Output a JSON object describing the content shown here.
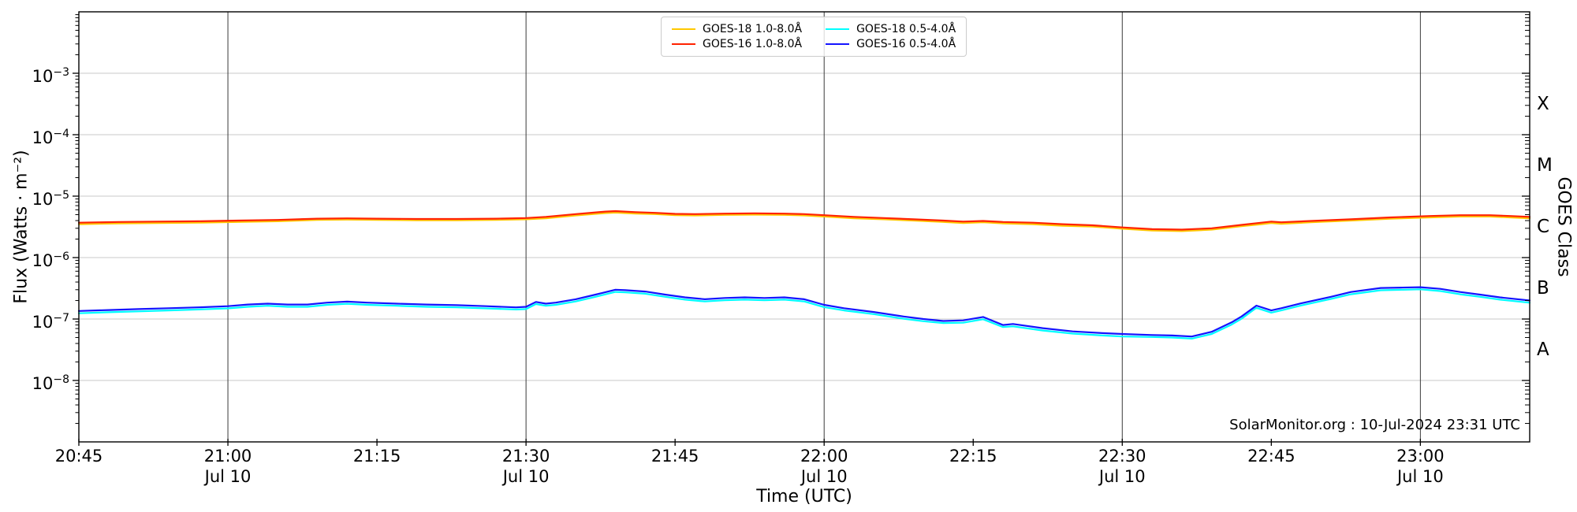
{
  "watermark": "SolarMonitor.org : 10-Jul-2024 23:31 UTC",
  "chart_data": {
    "type": "line",
    "title": "",
    "xlabel": "Time (UTC)",
    "ylabel": "Flux (Watts · m⁻²)",
    "right_axis_label": "GOES Class",
    "x_axis": {
      "total_minutes": 146,
      "start_label": "20:45",
      "end_time": "23:11",
      "gridline_minutes": [
        15,
        45,
        75,
        105,
        135
      ],
      "ticks": [
        {
          "minute": 0,
          "label": "20:45",
          "sublabel": ""
        },
        {
          "minute": 15,
          "label": "21:00",
          "sublabel": "Jul 10"
        },
        {
          "minute": 30,
          "label": "21:15",
          "sublabel": ""
        },
        {
          "minute": 45,
          "label": "21:30",
          "sublabel": "Jul 10"
        },
        {
          "minute": 60,
          "label": "21:45",
          "sublabel": ""
        },
        {
          "minute": 75,
          "label": "22:00",
          "sublabel": "Jul 10"
        },
        {
          "minute": 90,
          "label": "22:15",
          "sublabel": ""
        },
        {
          "minute": 105,
          "label": "22:30",
          "sublabel": "Jul 10"
        },
        {
          "minute": 120,
          "label": "22:45",
          "sublabel": ""
        },
        {
          "minute": 135,
          "label": "23:00",
          "sublabel": "Jul 10"
        }
      ]
    },
    "y_axis": {
      "scale": "log",
      "log_min_exp": -9,
      "log_max_exp": -2,
      "tick_exponents": [
        -3,
        -4,
        -5,
        -6,
        -7,
        -8
      ],
      "grid": true
    },
    "goes_classes": [
      {
        "label": "X",
        "log_center": -3.5
      },
      {
        "label": "M",
        "log_center": -4.5
      },
      {
        "label": "C",
        "log_center": -5.5
      },
      {
        "label": "B",
        "log_center": -6.5
      },
      {
        "label": "A",
        "log_center": -7.5
      }
    ],
    "legend_position": "top-center",
    "series": [
      {
        "name": "GOES-18 1.0-8.0Å",
        "color": "#ffc800",
        "points": [
          [
            0,
            3.5e-06
          ],
          [
            4,
            3.6e-06
          ],
          [
            8,
            3.65e-06
          ],
          [
            12,
            3.7e-06
          ],
          [
            16,
            3.8e-06
          ],
          [
            20,
            3.9e-06
          ],
          [
            24,
            4.1e-06
          ],
          [
            27,
            4.15e-06
          ],
          [
            30,
            4.1e-06
          ],
          [
            34,
            4.05e-06
          ],
          [
            38,
            4.05e-06
          ],
          [
            42,
            4.1e-06
          ],
          [
            45,
            4.2e-06
          ],
          [
            47,
            4.35e-06
          ],
          [
            50,
            4.85e-06
          ],
          [
            53,
            5.3e-06
          ],
          [
            54,
            5.4e-06
          ],
          [
            56,
            5.2e-06
          ],
          [
            58,
            5.1e-06
          ],
          [
            60,
            4.9e-06
          ],
          [
            62,
            4.85e-06
          ],
          [
            65,
            4.95e-06
          ],
          [
            68,
            5e-06
          ],
          [
            71,
            4.95e-06
          ],
          [
            73,
            4.85e-06
          ],
          [
            75,
            4.65e-06
          ],
          [
            78,
            4.35e-06
          ],
          [
            81,
            4.2e-06
          ],
          [
            84,
            4e-06
          ],
          [
            87,
            3.8e-06
          ],
          [
            89,
            3.65e-06
          ],
          [
            91,
            3.75e-06
          ],
          [
            93,
            3.6e-06
          ],
          [
            96,
            3.5e-06
          ],
          [
            99,
            3.3e-06
          ],
          [
            102,
            3.2e-06
          ],
          [
            105,
            2.95e-06
          ],
          [
            108,
            2.75e-06
          ],
          [
            111,
            2.7e-06
          ],
          [
            114,
            2.85e-06
          ],
          [
            117,
            3.25e-06
          ],
          [
            119,
            3.5e-06
          ],
          [
            120,
            3.65e-06
          ],
          [
            121,
            3.55e-06
          ],
          [
            124,
            3.75e-06
          ],
          [
            128,
            4e-06
          ],
          [
            132,
            4.3e-06
          ],
          [
            136,
            4.5e-06
          ],
          [
            139,
            4.65e-06
          ],
          [
            142,
            4.65e-06
          ],
          [
            144,
            4.5e-06
          ],
          [
            146,
            4.35e-06
          ]
        ]
      },
      {
        "name": "GOES-16 1.0-8.0Å",
        "color": "#ff2200",
        "points": [
          [
            0,
            3.7e-06
          ],
          [
            4,
            3.8e-06
          ],
          [
            8,
            3.85e-06
          ],
          [
            12,
            3.9e-06
          ],
          [
            16,
            4e-06
          ],
          [
            20,
            4.1e-06
          ],
          [
            24,
            4.3e-06
          ],
          [
            27,
            4.35e-06
          ],
          [
            30,
            4.3e-06
          ],
          [
            34,
            4.25e-06
          ],
          [
            38,
            4.25e-06
          ],
          [
            42,
            4.3e-06
          ],
          [
            45,
            4.4e-06
          ],
          [
            47,
            4.6e-06
          ],
          [
            50,
            5.1e-06
          ],
          [
            53,
            5.6e-06
          ],
          [
            54,
            5.7e-06
          ],
          [
            56,
            5.5e-06
          ],
          [
            58,
            5.35e-06
          ],
          [
            60,
            5.15e-06
          ],
          [
            62,
            5.1e-06
          ],
          [
            65,
            5.2e-06
          ],
          [
            68,
            5.25e-06
          ],
          [
            71,
            5.2e-06
          ],
          [
            73,
            5.1e-06
          ],
          [
            75,
            4.9e-06
          ],
          [
            78,
            4.6e-06
          ],
          [
            81,
            4.4e-06
          ],
          [
            84,
            4.2e-06
          ],
          [
            87,
            4e-06
          ],
          [
            89,
            3.85e-06
          ],
          [
            91,
            3.95e-06
          ],
          [
            93,
            3.8e-06
          ],
          [
            96,
            3.7e-06
          ],
          [
            99,
            3.5e-06
          ],
          [
            102,
            3.35e-06
          ],
          [
            105,
            3.1e-06
          ],
          [
            108,
            2.9e-06
          ],
          [
            111,
            2.85e-06
          ],
          [
            114,
            3e-06
          ],
          [
            117,
            3.4e-06
          ],
          [
            119,
            3.7e-06
          ],
          [
            120,
            3.85e-06
          ],
          [
            121,
            3.75e-06
          ],
          [
            124,
            3.95e-06
          ],
          [
            128,
            4.2e-06
          ],
          [
            132,
            4.5e-06
          ],
          [
            136,
            4.75e-06
          ],
          [
            139,
            4.9e-06
          ],
          [
            142,
            4.9e-06
          ],
          [
            144,
            4.75e-06
          ],
          [
            146,
            4.6e-06
          ]
        ]
      },
      {
        "name": "GOES-18 0.5-4.0Å",
        "color": "#00ffff",
        "points": [
          [
            0,
            1.24e-07
          ],
          [
            3,
            1.29e-07
          ],
          [
            6,
            1.33e-07
          ],
          [
            9,
            1.38e-07
          ],
          [
            12,
            1.43e-07
          ],
          [
            15,
            1.49e-07
          ],
          [
            17,
            1.58e-07
          ],
          [
            19,
            1.64e-07
          ],
          [
            21,
            1.58e-07
          ],
          [
            23,
            1.58e-07
          ],
          [
            25,
            1.7e-07
          ],
          [
            27,
            1.77e-07
          ],
          [
            29,
            1.7e-07
          ],
          [
            32,
            1.64e-07
          ],
          [
            35,
            1.58e-07
          ],
          [
            38,
            1.55e-07
          ],
          [
            41,
            1.49e-07
          ],
          [
            44,
            1.43e-07
          ],
          [
            45,
            1.45e-07
          ],
          [
            46,
            1.75e-07
          ],
          [
            47,
            1.64e-07
          ],
          [
            48,
            1.7e-07
          ],
          [
            50,
            1.93e-07
          ],
          [
            52,
            2.3e-07
          ],
          [
            54,
            2.76e-07
          ],
          [
            55,
            2.71e-07
          ],
          [
            57,
            2.58e-07
          ],
          [
            59,
            2.3e-07
          ],
          [
            61,
            2.07e-07
          ],
          [
            63,
            1.93e-07
          ],
          [
            65,
            2.02e-07
          ],
          [
            67,
            2.07e-07
          ],
          [
            69,
            2.02e-07
          ],
          [
            71,
            2.07e-07
          ],
          [
            73,
            1.93e-07
          ],
          [
            75,
            1.56e-07
          ],
          [
            77,
            1.38e-07
          ],
          [
            80,
            1.2e-07
          ],
          [
            83,
            1.01e-07
          ],
          [
            85,
            9.2e-08
          ],
          [
            87,
            8.6e-08
          ],
          [
            89,
            8.7e-08
          ],
          [
            91,
            9.9e-08
          ],
          [
            93,
            7.4e-08
          ],
          [
            94,
            7.6e-08
          ],
          [
            97,
            6.5e-08
          ],
          [
            100,
            5.8e-08
          ],
          [
            103,
            5.4e-08
          ],
          [
            105,
            5.2e-08
          ],
          [
            108,
            5.1e-08
          ],
          [
            110,
            5e-08
          ],
          [
            112,
            4.8e-08
          ],
          [
            114,
            5.7e-08
          ],
          [
            116,
            8.1e-08
          ],
          [
            117,
            1.01e-07
          ],
          [
            118.5,
            1.52e-07
          ],
          [
            120,
            1.27e-07
          ],
          [
            121,
            1.38e-07
          ],
          [
            123,
            1.66e-07
          ],
          [
            126,
            2.12e-07
          ],
          [
            128,
            2.53e-07
          ],
          [
            131,
            2.94e-07
          ],
          [
            133,
            2.99e-07
          ],
          [
            135,
            3.04e-07
          ],
          [
            137,
            2.85e-07
          ],
          [
            139,
            2.53e-07
          ],
          [
            141,
            2.3e-07
          ],
          [
            143,
            2.07e-07
          ],
          [
            146,
            1.84e-07
          ]
        ]
      },
      {
        "name": "GOES-16 0.5-4.0Å",
        "color": "#1414ff",
        "points": [
          [
            0,
            1.35e-07
          ],
          [
            3,
            1.4e-07
          ],
          [
            6,
            1.45e-07
          ],
          [
            9,
            1.5e-07
          ],
          [
            12,
            1.55e-07
          ],
          [
            15,
            1.62e-07
          ],
          [
            17,
            1.72e-07
          ],
          [
            19,
            1.78e-07
          ],
          [
            21,
            1.72e-07
          ],
          [
            23,
            1.72e-07
          ],
          [
            25,
            1.85e-07
          ],
          [
            27,
            1.92e-07
          ],
          [
            29,
            1.85e-07
          ],
          [
            32,
            1.78e-07
          ],
          [
            35,
            1.72e-07
          ],
          [
            38,
            1.68e-07
          ],
          [
            41,
            1.62e-07
          ],
          [
            44,
            1.55e-07
          ],
          [
            45,
            1.58e-07
          ],
          [
            46,
            1.9e-07
          ],
          [
            47,
            1.78e-07
          ],
          [
            48,
            1.85e-07
          ],
          [
            50,
            2.1e-07
          ],
          [
            52,
            2.5e-07
          ],
          [
            54,
            3e-07
          ],
          [
            55,
            2.95e-07
          ],
          [
            57,
            2.8e-07
          ],
          [
            59,
            2.5e-07
          ],
          [
            61,
            2.25e-07
          ],
          [
            63,
            2.1e-07
          ],
          [
            65,
            2.2e-07
          ],
          [
            67,
            2.25e-07
          ],
          [
            69,
            2.2e-07
          ],
          [
            71,
            2.25e-07
          ],
          [
            73,
            2.1e-07
          ],
          [
            75,
            1.7e-07
          ],
          [
            77,
            1.5e-07
          ],
          [
            80,
            1.3e-07
          ],
          [
            83,
            1.1e-07
          ],
          [
            85,
            1e-07
          ],
          [
            87,
            9.3e-08
          ],
          [
            89,
            9.5e-08
          ],
          [
            91,
            1.08e-07
          ],
          [
            93,
            8e-08
          ],
          [
            94,
            8.3e-08
          ],
          [
            97,
            7.1e-08
          ],
          [
            100,
            6.3e-08
          ],
          [
            103,
            5.9e-08
          ],
          [
            105,
            5.7e-08
          ],
          [
            108,
            5.5e-08
          ],
          [
            110,
            5.4e-08
          ],
          [
            112,
            5.2e-08
          ],
          [
            114,
            6.2e-08
          ],
          [
            116,
            8.8e-08
          ],
          [
            117,
            1.1e-07
          ],
          [
            118.5,
            1.65e-07
          ],
          [
            120,
            1.38e-07
          ],
          [
            121,
            1.5e-07
          ],
          [
            123,
            1.8e-07
          ],
          [
            126,
            2.3e-07
          ],
          [
            128,
            2.75e-07
          ],
          [
            131,
            3.2e-07
          ],
          [
            133,
            3.25e-07
          ],
          [
            135,
            3.3e-07
          ],
          [
            137,
            3.1e-07
          ],
          [
            139,
            2.75e-07
          ],
          [
            141,
            2.5e-07
          ],
          [
            143,
            2.25e-07
          ],
          [
            146,
            2e-07
          ]
        ]
      }
    ],
    "style": {
      "background": "#ffffff",
      "h_grid_color": "#c9c9c9",
      "v_grid_color": "#3a3a3a",
      "axis_color": "#000000",
      "text_color": "#000000"
    }
  }
}
